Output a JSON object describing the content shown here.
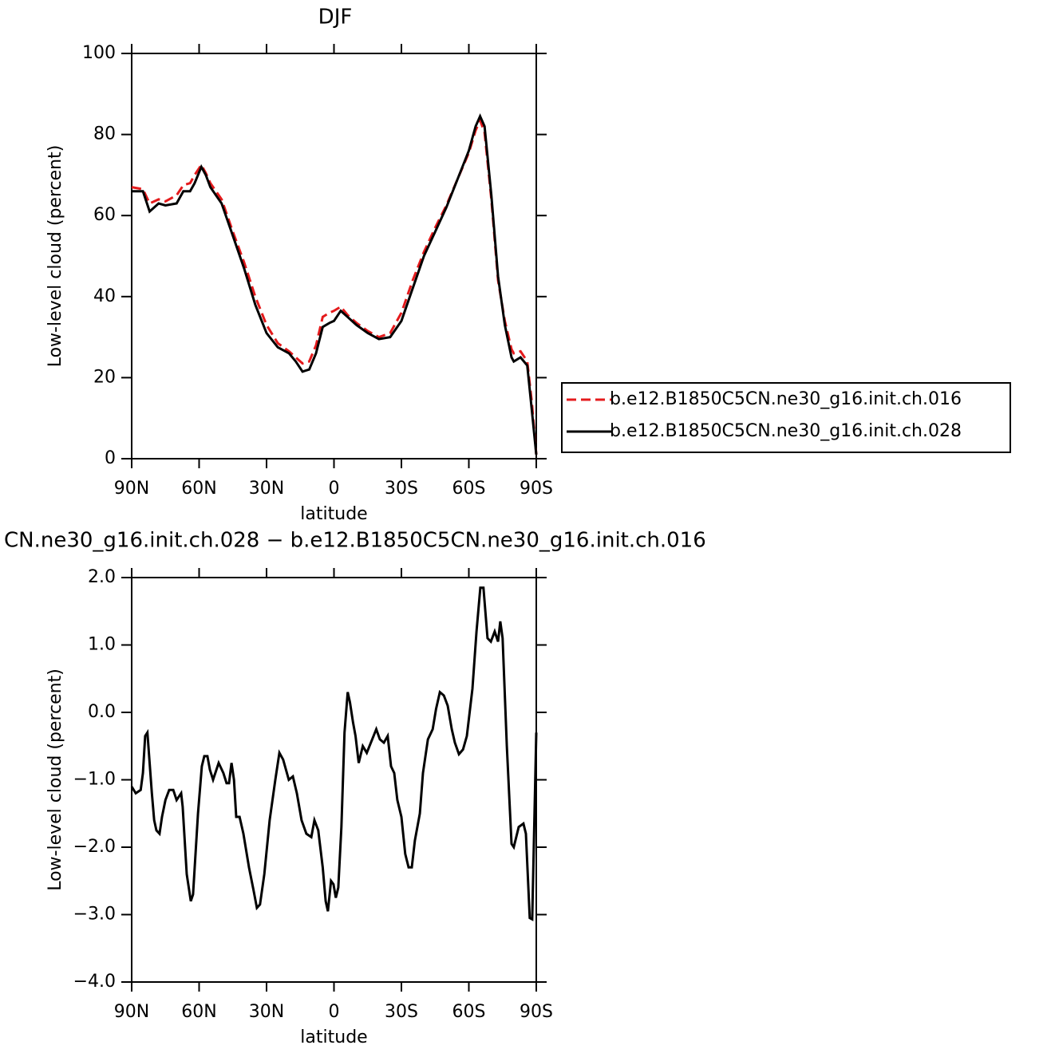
{
  "chart_data": [
    {
      "type": "line",
      "title": "DJF",
      "xlabel": "latitude",
      "ylabel": "Low-level cloud (percent)",
      "x": [
        90,
        85,
        82,
        78,
        75,
        70,
        67,
        64,
        62,
        59,
        57,
        55,
        50,
        45,
        40,
        35,
        30,
        25,
        20,
        17,
        14,
        11,
        8,
        5,
        2,
        0,
        -3,
        -6,
        -10,
        -15,
        -20,
        -25,
        -30,
        -35,
        -40,
        -45,
        -50,
        -55,
        -60,
        -63,
        -65,
        -67,
        -70,
        -73,
        -76,
        -79,
        -80,
        -83,
        -86,
        -88,
        -90
      ],
      "series": [
        {
          "name": "b.e12.B1850C5CN.ne30_g16.init.ch.016",
          "color": "#e41a1c",
          "dash": true,
          "values": [
            67,
            66.5,
            63,
            64,
            63.5,
            65,
            67.5,
            68,
            70,
            72.5,
            70.5,
            68,
            64,
            56,
            48.5,
            40,
            33,
            28.5,
            26.5,
            25,
            23.5,
            24,
            28,
            35,
            36,
            36.5,
            37.5,
            35.5,
            33.5,
            31.5,
            30,
            31,
            36,
            44,
            51,
            57,
            62.5,
            69,
            75.5,
            81,
            83.5,
            80.5,
            64,
            44,
            34,
            27,
            26,
            26.5,
            24,
            14,
            1
          ]
        },
        {
          "name": "b.e12.B1850C5CN.ne30_g16.init.ch.028",
          "color": "#000000",
          "dash": false,
          "values": [
            66,
            66,
            61,
            63,
            62.5,
            63,
            66,
            66,
            68,
            72,
            70,
            67,
            63,
            55,
            47,
            38,
            31,
            27.5,
            26,
            24,
            21.5,
            22,
            26,
            32.5,
            33.5,
            34,
            36.5,
            35,
            33,
            31,
            29.5,
            30,
            34,
            42,
            50,
            56,
            62,
            69,
            76,
            82,
            84.5,
            82,
            65,
            45,
            33,
            25,
            24,
            25,
            23,
            12,
            1
          ]
        }
      ],
      "xlim": [
        90,
        -90
      ],
      "xticks": [
        {
          "value": 90,
          "label": "90N"
        },
        {
          "value": 60,
          "label": "60N"
        },
        {
          "value": 30,
          "label": "30N"
        },
        0,
        {
          "value": -30,
          "label": "30S"
        },
        {
          "value": -60,
          "label": "60S"
        },
        {
          "value": -90,
          "label": "90S"
        }
      ],
      "ylim": [
        0,
        100
      ],
      "yticks": [
        0,
        20,
        40,
        60,
        80,
        100
      ],
      "legend": "right"
    },
    {
      "type": "line",
      "title": "CN.ne30_g16.init.ch.028 − b.e12.B1850C5CN.ne30_g16.init.ch.016",
      "xlabel": "latitude",
      "ylabel": "Low-level cloud (percent)",
      "x": [
        90,
        88.2,
        86,
        85,
        84,
        83,
        81,
        80,
        79,
        77.6,
        76.5,
        75,
        73.3,
        71.5,
        70,
        68,
        67.3,
        65.5,
        63.7,
        62.7,
        60.5,
        58.8,
        57.7,
        56.3,
        55.2,
        53.8,
        51.3,
        49.2,
        47.8,
        46.7,
        45.6,
        44.5,
        43.5,
        42,
        40.3,
        37.8,
        35.7,
        34.3,
        32.9,
        31,
        28.6,
        26.1,
        24.3,
        22.6,
        20.1,
        18.3,
        16.5,
        14.4,
        12.3,
        10.1,
        8.7,
        7,
        5,
        3.7,
        2.7,
        1.3,
        0.2,
        -0.8,
        -1.9,
        -3.3,
        -4.7,
        -6.1,
        -7.1,
        -8.5,
        -9.6,
        -11,
        -12.8,
        -14.6,
        -17,
        -18.8,
        -20.4,
        -22.2,
        -23.9,
        -25.4,
        -26.8,
        -28.2,
        -30,
        -31.7,
        -33.2,
        -34.6,
        -36,
        -38.2,
        -39.6,
        -41.8,
        -43.9,
        -45.4,
        -47.1,
        -48.9,
        -50.6,
        -52.4,
        -53.8,
        -55.6,
        -57.4,
        -59.1,
        -61.6,
        -63.4,
        -65.1,
        -66.5,
        -68.3,
        -69.8,
        -71.5,
        -73,
        -74,
        -75,
        -76.9,
        -79,
        -80,
        -82.2,
        -84.3,
        -85.4,
        -87.1,
        -88.2,
        -90
      ],
      "values": [
        -1.1,
        -1.2,
        -1.15,
        -0.9,
        -0.35,
        -0.3,
        -1.2,
        -1.6,
        -1.75,
        -1.8,
        -1.55,
        -1.3,
        -1.15,
        -1.15,
        -1.3,
        -1.2,
        -1.4,
        -2.4,
        -2.8,
        -2.7,
        -1.5,
        -0.8,
        -0.65,
        -0.65,
        -0.85,
        -1.0,
        -0.75,
        -0.9,
        -1.05,
        -1.05,
        -0.75,
        -1.0,
        -1.55,
        -1.55,
        -1.8,
        -2.3,
        -2.65,
        -2.9,
        -2.85,
        -2.4,
        -1.6,
        -1.0,
        -0.6,
        -0.7,
        -1.0,
        -0.95,
        -1.2,
        -1.6,
        -1.8,
        -1.85,
        -1.6,
        -1.75,
        -2.3,
        -2.8,
        -2.95,
        -2.5,
        -2.55,
        -2.75,
        -2.6,
        -1.7,
        -0.3,
        0.3,
        0.15,
        -0.15,
        -0.35,
        -0.75,
        -0.5,
        -0.6,
        -0.4,
        -0.25,
        -0.4,
        -0.45,
        -0.35,
        -0.8,
        -0.9,
        -1.3,
        -1.55,
        -2.1,
        -2.3,
        -2.3,
        -1.9,
        -1.5,
        -0.9,
        -0.4,
        -0.25,
        0.05,
        0.3,
        0.25,
        0.1,
        -0.25,
        -0.45,
        -0.62,
        -0.55,
        -0.35,
        0.35,
        1.2,
        1.85,
        1.85,
        1.1,
        1.05,
        1.2,
        1.05,
        1.35,
        1.1,
        -0.5,
        -1.95,
        -2.0,
        -1.7,
        -1.65,
        -1.8,
        -3.05,
        -3.07,
        -0.3
      ],
      "color": "#000000",
      "xlim": [
        90,
        -90
      ],
      "xticks": [
        {
          "value": 90,
          "label": "90N"
        },
        {
          "value": 60,
          "label": "60N"
        },
        {
          "value": 30,
          "label": "30N"
        },
        0,
        {
          "value": -30,
          "label": "30S"
        },
        {
          "value": -60,
          "label": "60S"
        },
        {
          "value": -90,
          "label": "90S"
        }
      ],
      "ylim": [
        -4,
        2
      ],
      "yticks": [
        {
          "value": -4,
          "label": "−4.0"
        },
        {
          "value": -3,
          "label": "−3.0"
        },
        {
          "value": -2,
          "label": "−2.0"
        },
        {
          "value": -1,
          "label": "−1.0"
        },
        {
          "value": 0,
          "label": "0.0"
        },
        {
          "value": 1,
          "label": "1.0"
        },
        {
          "value": 2,
          "label": "2.0"
        }
      ]
    }
  ]
}
